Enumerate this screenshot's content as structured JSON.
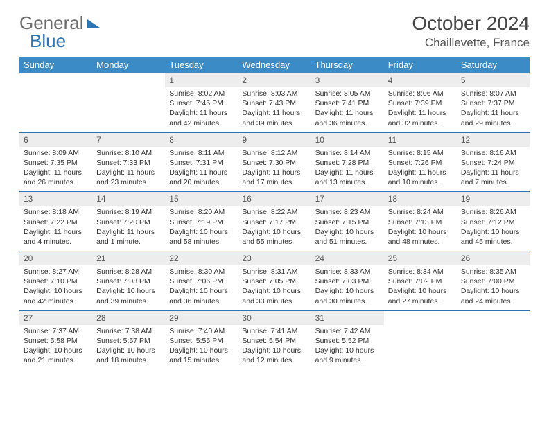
{
  "brand": {
    "part1": "General",
    "part2": "Blue"
  },
  "title": "October 2024",
  "location": "Chaillevette, France",
  "header_bg": "#3b8bc7",
  "divider_color": "#2e75b6",
  "daynum_bg": "#ededed",
  "days": [
    "Sunday",
    "Monday",
    "Tuesday",
    "Wednesday",
    "Thursday",
    "Friday",
    "Saturday"
  ],
  "weeks": [
    {
      "nums": [
        "",
        "",
        "1",
        "2",
        "3",
        "4",
        "5"
      ],
      "cells": [
        null,
        null,
        {
          "sunrise": "Sunrise: 8:02 AM",
          "sunset": "Sunset: 7:45 PM",
          "daylight": "Daylight: 11 hours and 42 minutes."
        },
        {
          "sunrise": "Sunrise: 8:03 AM",
          "sunset": "Sunset: 7:43 PM",
          "daylight": "Daylight: 11 hours and 39 minutes."
        },
        {
          "sunrise": "Sunrise: 8:05 AM",
          "sunset": "Sunset: 7:41 PM",
          "daylight": "Daylight: 11 hours and 36 minutes."
        },
        {
          "sunrise": "Sunrise: 8:06 AM",
          "sunset": "Sunset: 7:39 PM",
          "daylight": "Daylight: 11 hours and 32 minutes."
        },
        {
          "sunrise": "Sunrise: 8:07 AM",
          "sunset": "Sunset: 7:37 PM",
          "daylight": "Daylight: 11 hours and 29 minutes."
        }
      ]
    },
    {
      "nums": [
        "6",
        "7",
        "8",
        "9",
        "10",
        "11",
        "12"
      ],
      "cells": [
        {
          "sunrise": "Sunrise: 8:09 AM",
          "sunset": "Sunset: 7:35 PM",
          "daylight": "Daylight: 11 hours and 26 minutes."
        },
        {
          "sunrise": "Sunrise: 8:10 AM",
          "sunset": "Sunset: 7:33 PM",
          "daylight": "Daylight: 11 hours and 23 minutes."
        },
        {
          "sunrise": "Sunrise: 8:11 AM",
          "sunset": "Sunset: 7:31 PM",
          "daylight": "Daylight: 11 hours and 20 minutes."
        },
        {
          "sunrise": "Sunrise: 8:12 AM",
          "sunset": "Sunset: 7:30 PM",
          "daylight": "Daylight: 11 hours and 17 minutes."
        },
        {
          "sunrise": "Sunrise: 8:14 AM",
          "sunset": "Sunset: 7:28 PM",
          "daylight": "Daylight: 11 hours and 13 minutes."
        },
        {
          "sunrise": "Sunrise: 8:15 AM",
          "sunset": "Sunset: 7:26 PM",
          "daylight": "Daylight: 11 hours and 10 minutes."
        },
        {
          "sunrise": "Sunrise: 8:16 AM",
          "sunset": "Sunset: 7:24 PM",
          "daylight": "Daylight: 11 hours and 7 minutes."
        }
      ]
    },
    {
      "nums": [
        "13",
        "14",
        "15",
        "16",
        "17",
        "18",
        "19"
      ],
      "cells": [
        {
          "sunrise": "Sunrise: 8:18 AM",
          "sunset": "Sunset: 7:22 PM",
          "daylight": "Daylight: 11 hours and 4 minutes."
        },
        {
          "sunrise": "Sunrise: 8:19 AM",
          "sunset": "Sunset: 7:20 PM",
          "daylight": "Daylight: 11 hours and 1 minute."
        },
        {
          "sunrise": "Sunrise: 8:20 AM",
          "sunset": "Sunset: 7:19 PM",
          "daylight": "Daylight: 10 hours and 58 minutes."
        },
        {
          "sunrise": "Sunrise: 8:22 AM",
          "sunset": "Sunset: 7:17 PM",
          "daylight": "Daylight: 10 hours and 55 minutes."
        },
        {
          "sunrise": "Sunrise: 8:23 AM",
          "sunset": "Sunset: 7:15 PM",
          "daylight": "Daylight: 10 hours and 51 minutes."
        },
        {
          "sunrise": "Sunrise: 8:24 AM",
          "sunset": "Sunset: 7:13 PM",
          "daylight": "Daylight: 10 hours and 48 minutes."
        },
        {
          "sunrise": "Sunrise: 8:26 AM",
          "sunset": "Sunset: 7:12 PM",
          "daylight": "Daylight: 10 hours and 45 minutes."
        }
      ]
    },
    {
      "nums": [
        "20",
        "21",
        "22",
        "23",
        "24",
        "25",
        "26"
      ],
      "cells": [
        {
          "sunrise": "Sunrise: 8:27 AM",
          "sunset": "Sunset: 7:10 PM",
          "daylight": "Daylight: 10 hours and 42 minutes."
        },
        {
          "sunrise": "Sunrise: 8:28 AM",
          "sunset": "Sunset: 7:08 PM",
          "daylight": "Daylight: 10 hours and 39 minutes."
        },
        {
          "sunrise": "Sunrise: 8:30 AM",
          "sunset": "Sunset: 7:06 PM",
          "daylight": "Daylight: 10 hours and 36 minutes."
        },
        {
          "sunrise": "Sunrise: 8:31 AM",
          "sunset": "Sunset: 7:05 PM",
          "daylight": "Daylight: 10 hours and 33 minutes."
        },
        {
          "sunrise": "Sunrise: 8:33 AM",
          "sunset": "Sunset: 7:03 PM",
          "daylight": "Daylight: 10 hours and 30 minutes."
        },
        {
          "sunrise": "Sunrise: 8:34 AM",
          "sunset": "Sunset: 7:02 PM",
          "daylight": "Daylight: 10 hours and 27 minutes."
        },
        {
          "sunrise": "Sunrise: 8:35 AM",
          "sunset": "Sunset: 7:00 PM",
          "daylight": "Daylight: 10 hours and 24 minutes."
        }
      ]
    },
    {
      "nums": [
        "27",
        "28",
        "29",
        "30",
        "31",
        "",
        ""
      ],
      "cells": [
        {
          "sunrise": "Sunrise: 7:37 AM",
          "sunset": "Sunset: 5:58 PM",
          "daylight": "Daylight: 10 hours and 21 minutes."
        },
        {
          "sunrise": "Sunrise: 7:38 AM",
          "sunset": "Sunset: 5:57 PM",
          "daylight": "Daylight: 10 hours and 18 minutes."
        },
        {
          "sunrise": "Sunrise: 7:40 AM",
          "sunset": "Sunset: 5:55 PM",
          "daylight": "Daylight: 10 hours and 15 minutes."
        },
        {
          "sunrise": "Sunrise: 7:41 AM",
          "sunset": "Sunset: 5:54 PM",
          "daylight": "Daylight: 10 hours and 12 minutes."
        },
        {
          "sunrise": "Sunrise: 7:42 AM",
          "sunset": "Sunset: 5:52 PM",
          "daylight": "Daylight: 10 hours and 9 minutes."
        },
        null,
        null
      ]
    }
  ]
}
